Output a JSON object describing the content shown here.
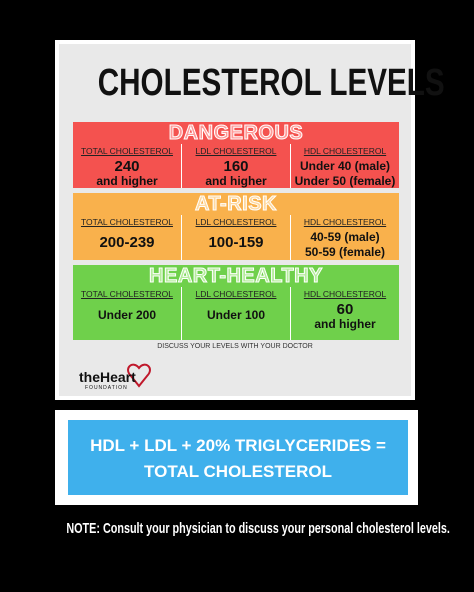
{
  "title": "CHOLESTEROL LEVELS",
  "levels": [
    {
      "name": "DANGEROUS",
      "color": "#f4524f",
      "tint": "#ff9a98",
      "columns": [
        {
          "header": "TOTAL CHOLESTEROL",
          "value": [
            "240",
            "and higher"
          ]
        },
        {
          "header": "LDL CHOLESTEROL",
          "value": [
            "160",
            "and higher"
          ]
        },
        {
          "header": "HDL CHOLESTEROL",
          "value": [
            "Under 40 (male)",
            "Under 50 (female)"
          ]
        }
      ]
    },
    {
      "name": "AT-RISK",
      "color": "#f9b14c",
      "tint": "#ffd9a0",
      "columns": [
        {
          "header": "TOTAL CHOLESTEROL",
          "value": [
            "200-239"
          ]
        },
        {
          "header": "LDL CHOLESTEROL",
          "value": [
            "100-159"
          ]
        },
        {
          "header": "HDL CHOLESTEROL",
          "value": [
            "40-59 (male)",
            "50-59 (female)"
          ]
        }
      ]
    },
    {
      "name": "HEART-HEALTHY",
      "color": "#6fd04b",
      "tint": "#b5ec9c",
      "columns": [
        {
          "header": "TOTAL CHOLESTEROL",
          "value": [
            "Under 200"
          ]
        },
        {
          "header": "LDL CHOLESTEROL",
          "value": [
            "Under 100"
          ]
        },
        {
          "header": "HDL CHOLESTEROL",
          "value": [
            "60",
            "and higher"
          ]
        }
      ]
    }
  ],
  "footer": "DISCUSS YOUR LEVELS WITH YOUR DOCTOR",
  "logo": {
    "brand": "theHeart",
    "sub": "FOUNDATION"
  },
  "formula": [
    "HDL + LDL + 20% TRIGLYCERIDES =",
    "TOTAL CHOLESTEROL"
  ],
  "note": "NOTE: Consult your physician to discuss your personal cholesterol levels."
}
